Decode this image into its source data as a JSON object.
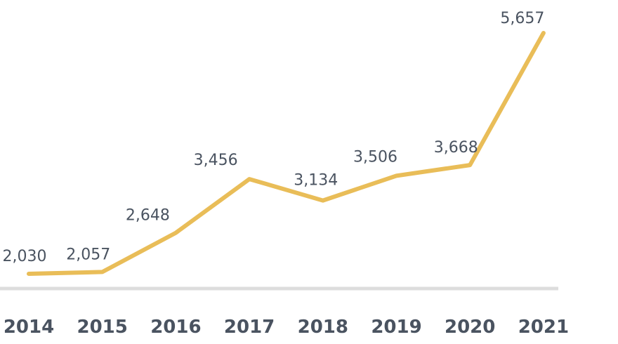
{
  "chart_data": {
    "type": "line",
    "title": "",
    "xlabel": "",
    "ylabel": "",
    "categories": [
      "2014",
      "2015",
      "2016",
      "2017",
      "2018",
      "2019",
      "2020",
      "2021"
    ],
    "series": [
      {
        "values": [
          2030,
          2057,
          2648,
          3456,
          3134,
          3506,
          3668,
          5657
        ],
        "labels": [
          "2,030",
          "2,057",
          "2,648",
          "3,456",
          "3,134",
          "3,506",
          "3,668",
          "5,657"
        ]
      }
    ],
    "ylim": [
      1800,
      5800
    ],
    "grid": false,
    "legend": "none",
    "colors": {
      "line": "#e9bd58",
      "baseline": "#dddddd",
      "text": "#4a5360"
    }
  }
}
